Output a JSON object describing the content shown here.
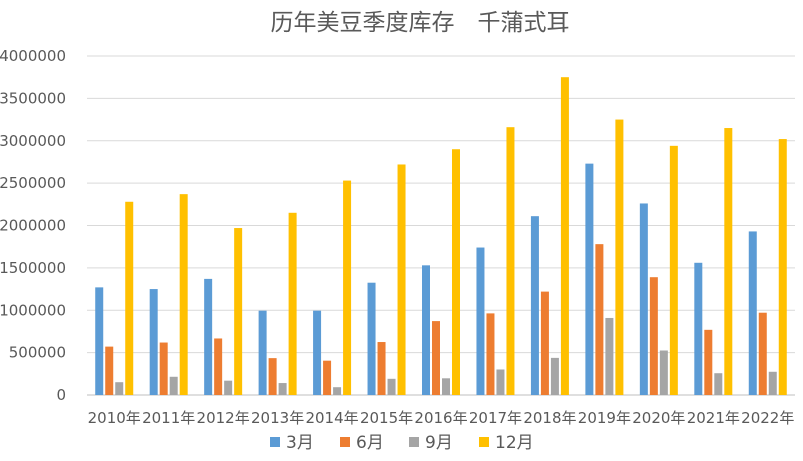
{
  "chart_data": {
    "type": "bar",
    "title": "历年美豆季度库存　千蒲式耳",
    "categories": [
      "2010年",
      "2011年",
      "2012年",
      "2013年",
      "2014年",
      "2015年",
      "2016年",
      "2017年",
      "2018年",
      "2019年",
      "2020年",
      "2021年",
      "2022年"
    ],
    "series": [
      {
        "name": "3月",
        "color": "#5B9BD5",
        "values": [
          1270000,
          1250000,
          1370000,
          995000,
          995000,
          1325000,
          1530000,
          1740000,
          2110000,
          2730000,
          2260000,
          1560000,
          1930000
        ]
      },
      {
        "name": "6月",
        "color": "#ED7D31",
        "values": [
          571000,
          619000,
          667000,
          435000,
          405000,
          625000,
          872000,
          963000,
          1220000,
          1780000,
          1390000,
          769000,
          971000
        ]
      },
      {
        "name": "9月",
        "color": "#A5A5A5",
        "values": [
          151000,
          215000,
          169000,
          141000,
          92000,
          191000,
          197000,
          301000,
          438000,
          909000,
          525000,
          257000,
          274000
        ]
      },
      {
        "name": "12月",
        "color": "#FFC000",
        "values": [
          2280000,
          2370000,
          1970000,
          2150000,
          2530000,
          2720000,
          2900000,
          3160000,
          3750000,
          3250000,
          2940000,
          3150000,
          3020000
        ]
      }
    ],
    "yticks": [
      "0",
      "500000",
      "1000000",
      "1500000",
      "2000000",
      "2500000",
      "3000000",
      "3500000",
      "4000000"
    ],
    "ylim": [
      0,
      4000000
    ],
    "grid": true,
    "legend_position": "bottom"
  }
}
